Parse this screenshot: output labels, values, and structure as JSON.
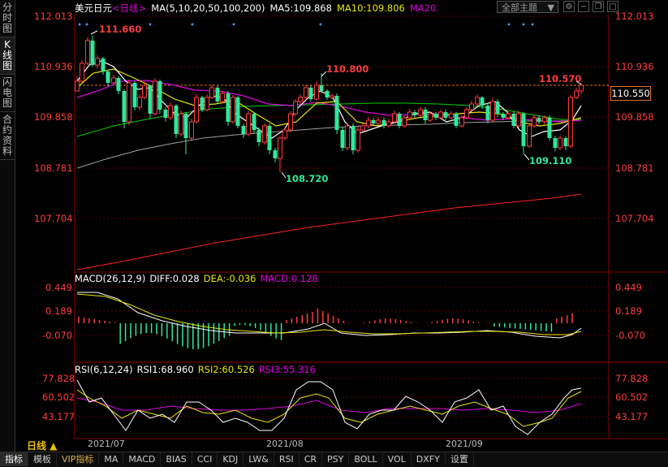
{
  "sidebar": {
    "tabs": [
      {
        "label": "分时图",
        "active": false
      },
      {
        "label": "K线图",
        "active": true
      },
      {
        "label": "闪电图",
        "active": false
      },
      {
        "label": "合约资料",
        "active": false
      }
    ]
  },
  "header": {
    "symbol": "美元日元",
    "period_tag": "<日线>",
    "ma_label": "MA(5,10,20,50,100,200)",
    "ma5": "MA5:109.868",
    "ma10": "MA10:109.806",
    "ma20": "MA20",
    "theme_button": "全部主题",
    "theme_chevron": "▼"
  },
  "price_axis": {
    "labels": [
      "112.013",
      "110.936",
      "109.858",
      "108.781",
      "107.704"
    ],
    "current_price": "110.550"
  },
  "annotations": {
    "high_left": "111.660",
    "high_mid": "110.800",
    "low_mid": "108.720",
    "high_right": "110.570",
    "low_right": "109.110"
  },
  "macd": {
    "title": "MACD(26,12,9)",
    "diff": "DIFF:0.028",
    "dea": "DEA:-0.036",
    "macd": "MACD:0.128",
    "axis_labels": [
      "0.449",
      "0.189",
      "-0.070"
    ]
  },
  "rsi": {
    "title": "RSI(6,12,24)",
    "rsi1": "RSI1:68.960",
    "rsi2": "RSI2:60.526",
    "rsi3": "RSI3:55.316",
    "axis_labels": [
      "77.828",
      "60.502",
      "43.177"
    ]
  },
  "x_axis": {
    "period_label": "日线 ▲",
    "dates": [
      "2021/07",
      "2021/08",
      "2021/09"
    ]
  },
  "bottom_tabs": [
    "指标",
    "模板",
    "VIP指标",
    "MA",
    "MACD",
    "BIAS",
    "CCI",
    "KDJ",
    "LW&",
    "RSI",
    "CR",
    "PSY",
    "BOLL",
    "VOL",
    "DXFY",
    "设置"
  ],
  "colors": {
    "up": "#ff3c3c",
    "down": "#2ee89a",
    "ma5": "#ffffff",
    "ma10": "#e8e800",
    "ma20": "#e000e0",
    "ma50": "#00d000",
    "ma100": "#a0a0a0",
    "ma200": "#ff2020",
    "grid": "#8b0000"
  }
}
